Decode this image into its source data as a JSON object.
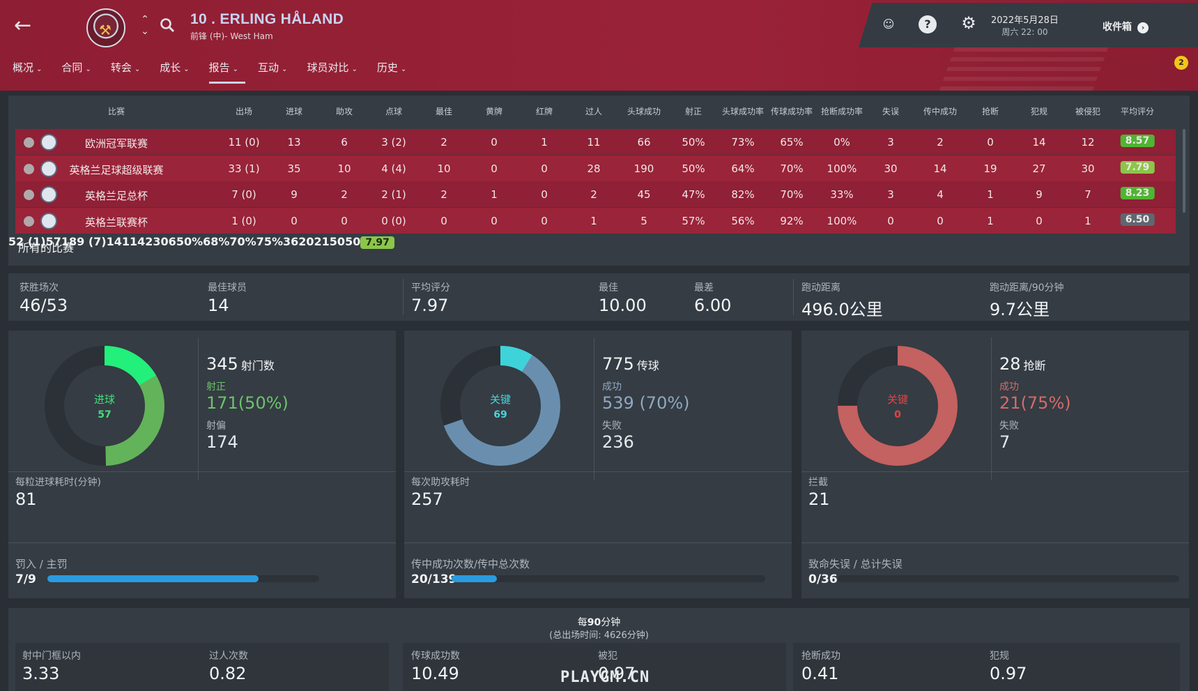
{
  "header": {
    "player_title": "10 . ERLING HÅLAND",
    "player_sub": "前锋 (中)- West Ham",
    "menu": [
      {
        "label": "概况"
      },
      {
        "label": "合同"
      },
      {
        "label": "转会"
      },
      {
        "label": "成长"
      },
      {
        "label": "报告"
      },
      {
        "label": "互动"
      },
      {
        "label": "球员对比"
      },
      {
        "label": "历史"
      }
    ],
    "date": "2022年5月28日",
    "time": "周六 22: 00",
    "inbox": "收件箱",
    "notification_count": "2"
  },
  "stats_table": {
    "columns": [
      "比赛",
      "出场",
      "进球",
      "助攻",
      "点球",
      "最佳",
      "黄牌",
      "红牌",
      "过人",
      "头球成功",
      "射正",
      "头球成功率",
      "传球成功率",
      "抢断成功率",
      "失误",
      "传中成功",
      "抢断",
      "犯规",
      "被侵犯",
      "平均评分"
    ],
    "rows": [
      {
        "cells": [
          "欧洲冠军联赛",
          "11 (0)",
          "13",
          "6",
          "3 (2)",
          "2",
          "0",
          "1",
          "11",
          "66",
          "50%",
          "73%",
          "65%",
          "0%",
          "3",
          "2",
          "0",
          "14",
          "12"
        ],
        "rating": "8.57",
        "rating_color": "#4fb534"
      },
      {
        "cells": [
          "英格兰足球超级联赛",
          "33 (1)",
          "35",
          "10",
          "4 (4)",
          "10",
          "0",
          "0",
          "28",
          "190",
          "50%",
          "64%",
          "70%",
          "100%",
          "30",
          "14",
          "19",
          "27",
          "30"
        ],
        "rating": "7.79",
        "rating_color": "#8bc64a"
      },
      {
        "cells": [
          "英格兰足总杯",
          "7 (0)",
          "9",
          "2",
          "2 (1)",
          "2",
          "1",
          "0",
          "2",
          "45",
          "47%",
          "82%",
          "70%",
          "33%",
          "3",
          "4",
          "1",
          "9",
          "7"
        ],
        "rating": "8.23",
        "rating_color": "#4fb534"
      },
      {
        "cells": [
          "英格兰联赛杯",
          "1 (0)",
          "0",
          "0",
          "0 (0)",
          "0",
          "0",
          "0",
          "1",
          "5",
          "57%",
          "56%",
          "92%",
          "100%",
          "0",
          "0",
          "1",
          "0",
          "1"
        ],
        "rating": "6.50",
        "rating_color": "#5e6770"
      }
    ],
    "total": {
      "cells": [
        "所有的比赛",
        "52 (1)",
        "57",
        "18",
        "9 (7)",
        "14",
        "1",
        "1",
        "42",
        "306",
        "50%",
        "68%",
        "70%",
        "75%",
        "36",
        "20",
        "21",
        "50",
        "50"
      ],
      "rating": "7.97",
      "rating_color": "#8bc64a"
    }
  },
  "summary": [
    {
      "label": "获胜场次",
      "value": "46/53"
    },
    {
      "label": "最佳球员",
      "value": "14"
    },
    {
      "label": "平均评分",
      "value": "7.97"
    },
    {
      "label": "最佳",
      "value": "10.00"
    },
    {
      "label": "最差",
      "value": "6.00"
    },
    {
      "label": "跑动距离",
      "value": "496.0公里"
    },
    {
      "label": "跑动距离/90分钟",
      "value": "9.7公里"
    }
  ],
  "cards": [
    {
      "center_label": "进球",
      "center_value": "57",
      "center_color": "#3fe07a",
      "main_value": "345",
      "main_label": "射门数",
      "stat1_label": "射正",
      "stat1_value": "171(50%)",
      "stat1_color": "#6cc36b",
      "stat2_label": "射偏",
      "stat2_value": "174",
      "bottom_label": "每粒进球耗时(分钟)",
      "bottom_value": "81",
      "bar_label": "罚入 / 主罚",
      "bar_value": "7/9",
      "bar_fraction": 0.778,
      "ring_color": "#63b35a",
      "accent_fraction": 0.165,
      "accent_color": "#22f07a",
      "main_fraction": 0.496
    },
    {
      "center_label": "关键",
      "center_value": "69",
      "center_color": "#49d3dc",
      "main_value": "775",
      "main_label": "传球",
      "stat1_label": "成功",
      "stat1_value": "539 (70%)",
      "stat1_color": "#8fa9c2",
      "stat2_label": "失败",
      "stat2_value": "236",
      "bottom_label": "每次助攻耗时",
      "bottom_value": "257",
      "bar_label": "传中成功次数/传中总次数",
      "bar_value": "20/139",
      "bar_fraction": 0.144,
      "ring_color": "#6a8fae",
      "accent_fraction": 0.089,
      "accent_color": "#3ed3d9",
      "main_fraction": 0.696
    },
    {
      "center_label": "关键",
      "center_value": "0",
      "center_color": "#e04545",
      "main_value": "28",
      "main_label": "抢断",
      "stat1_label": "成功",
      "stat1_value": "21(75%)",
      "stat1_color": "#d56a6a",
      "stat2_label": "失败",
      "stat2_value": "7",
      "bottom_label": "拦截",
      "bottom_value": "21",
      "bar_label": "致命失误 / 总计失误",
      "bar_value": "0/36",
      "bar_fraction": 0.0,
      "ring_color": "#c46161",
      "accent_fraction": 0.0,
      "accent_color": "#e04545",
      "main_fraction": 0.75
    }
  ],
  "per90": {
    "title_prefix": "每",
    "title_bold": "90",
    "title_suffix": "分钟",
    "subtitle": "(总出场时间: 4626分钟)",
    "items": [
      {
        "label": "射中门框以内",
        "value": "3.33"
      },
      {
        "label": "过人次数",
        "value": "0.82"
      },
      {
        "label": "传球成功数",
        "value": "10.49"
      },
      {
        "label": "被犯",
        "value": "0.97"
      },
      {
        "label": "抢断成功",
        "value": "0.41"
      },
      {
        "label": "犯规",
        "value": "0.97"
      }
    ]
  },
  "watermark": "PLAYGM.CN"
}
